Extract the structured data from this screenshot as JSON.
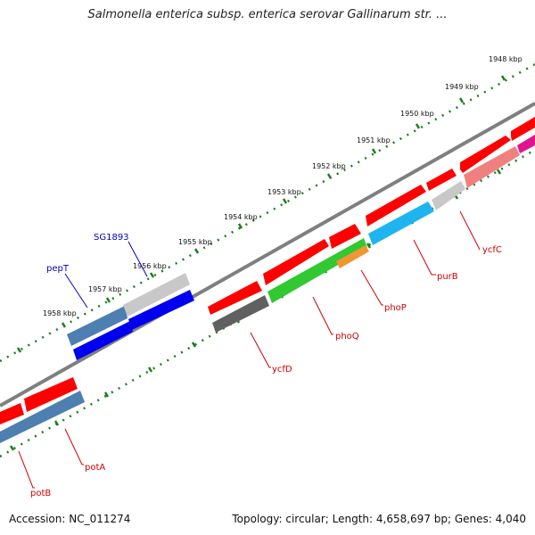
{
  "title": "Salmonella enterica subsp. enterica serovar Gallinarum str. ...",
  "footer": {
    "accession": "Accession: NC_011274",
    "summary": "Topology: circular; Length: 4,658,697 bp; Genes: 4,040"
  },
  "colors": {
    "backbone": "#7f7f7f",
    "tick": "#1a7f1a",
    "label_red": "#d00000",
    "label_blue": "#0000c8"
  },
  "ticks": [
    {
      "label": "1948 kbp"
    },
    {
      "label": "1949 kbp"
    },
    {
      "label": "1950 kbp"
    },
    {
      "label": "1951 kbp"
    },
    {
      "label": "1952 kbp"
    },
    {
      "label": "1953 kbp"
    },
    {
      "label": "1954 kbp"
    },
    {
      "label": "1955 kbp"
    },
    {
      "label": "1956 kbp"
    },
    {
      "label": "1957 kbp"
    },
    {
      "label": "1958 kbp"
    }
  ],
  "gene_labels": [
    {
      "name": "SG1893",
      "color": "blue"
    },
    {
      "name": "pepT",
      "color": "blue"
    },
    {
      "name": "ycfC",
      "color": "red"
    },
    {
      "name": "purB",
      "color": "red"
    },
    {
      "name": "phoP",
      "color": "red"
    },
    {
      "name": "phoQ",
      "color": "red"
    },
    {
      "name": "ycfD",
      "color": "red"
    },
    {
      "name": "potA",
      "color": "red"
    },
    {
      "name": "potB",
      "color": "red"
    }
  ]
}
